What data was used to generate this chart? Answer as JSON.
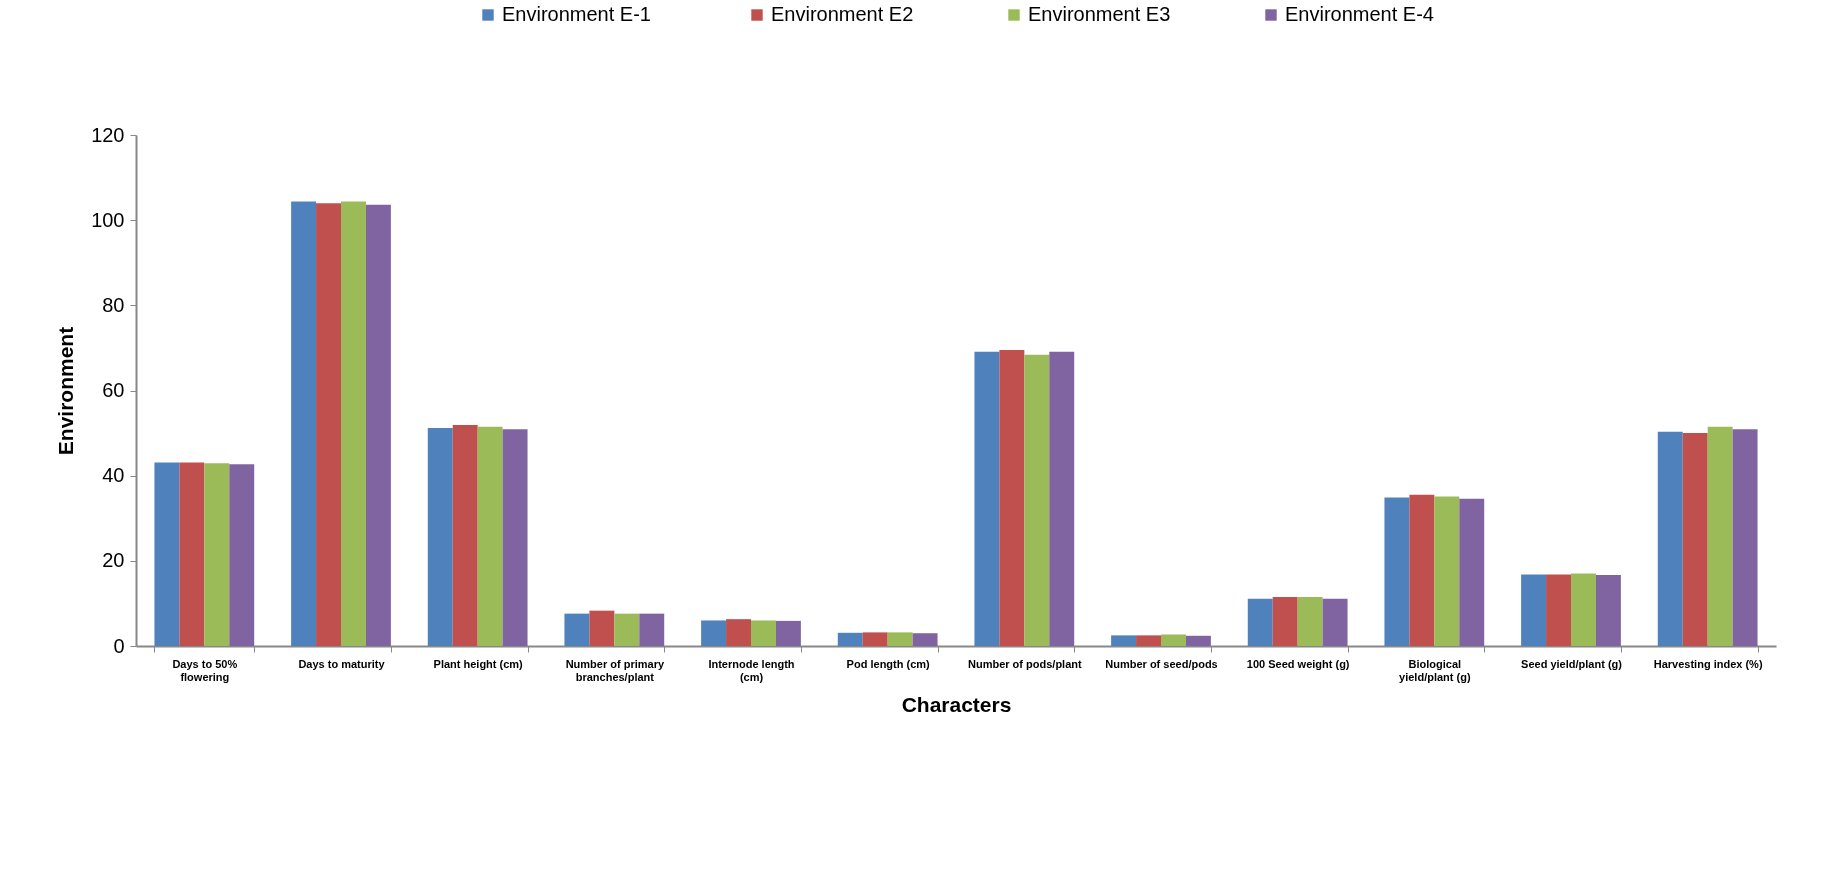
{
  "chart_data": {
    "type": "bar",
    "xlabel": "Characters",
    "ylabel": "Environment",
    "categories": [
      "Days to 50% flowering",
      "Days to maturity",
      "Plant height (cm)",
      "Number of primary branches/plant",
      "Internode length (cm)",
      "Pod length (cm)",
      "Number of pods/plant",
      "Number of seed/pods",
      "100 Seed weight (g)",
      "Biological yield/plant (g)",
      "Seed yield/plant (g)",
      "Harvesting index (%)"
    ],
    "series": [
      {
        "name": "Environment  E-1",
        "color": "#4f81bd",
        "values": [
          43.1,
          104.4,
          51.2,
          7.6,
          6.0,
          3.1,
          69.1,
          2.5,
          11.1,
          34.9,
          16.8,
          50.3
        ]
      },
      {
        "name": "Environment E2",
        "color": "#c0504d",
        "values": [
          43.1,
          104.0,
          51.9,
          8.3,
          6.3,
          3.2,
          69.5,
          2.5,
          11.5,
          35.5,
          16.8,
          50.0
        ]
      },
      {
        "name": "Environment E3",
        "color": "#9bbb59",
        "values": [
          42.9,
          104.4,
          51.5,
          7.6,
          6.0,
          3.2,
          68.4,
          2.7,
          11.5,
          35.1,
          17.0,
          51.5
        ]
      },
      {
        "name": "Environment E-4",
        "color": "#8064a2",
        "values": [
          42.7,
          103.6,
          50.9,
          7.6,
          5.9,
          3.0,
          69.1,
          2.4,
          11.1,
          34.6,
          16.7,
          50.9
        ]
      }
    ],
    "ylim": [
      0,
      120
    ],
    "yticks": [
      0,
      20,
      40,
      60,
      80,
      100,
      120
    ],
    "grid": false,
    "legend": "top"
  }
}
